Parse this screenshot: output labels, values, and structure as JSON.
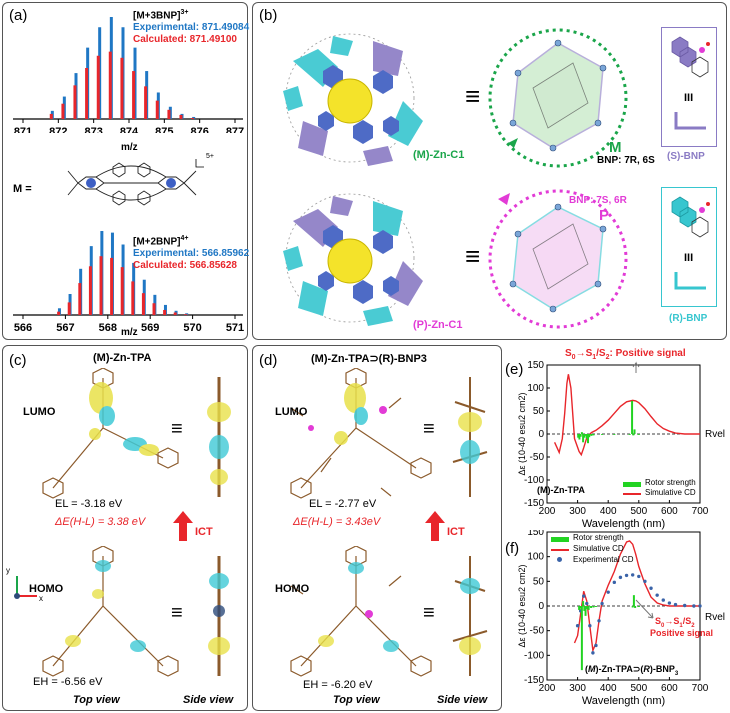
{
  "panels": {
    "a": "(a)",
    "b": "(b)",
    "c": "(c)",
    "d": "(d)",
    "e": "(e)",
    "f": "(f)"
  },
  "a_top": {
    "ion_label": "[M+3BNP]",
    "ion_charge": "3+",
    "experimental": "Experimental: 871.49084",
    "calculated": "Calculated: 871.49100",
    "xlabel": "m/z",
    "ticks": [
      "871",
      "872",
      "873",
      "874",
      "875",
      "876",
      "877"
    ]
  },
  "a_mid": {
    "m_label": "M =",
    "charge": "5+"
  },
  "a_bottom": {
    "ion_label": "[M+2BNP]",
    "ion_charge": "4+",
    "experimental": "Experimental: 566.85962",
    "calculated": "Calculated: 566.85628",
    "xlabel": "m/z",
    "ticks": [
      "566",
      "567",
      "568",
      "569",
      "570",
      "571"
    ]
  },
  "b": {
    "top_label": "(M)-Zn-C1",
    "bottom_label": "(P)-Zn-C1",
    "equiv": "≡",
    "helix_m": "M",
    "helix_p": "P",
    "bnp_m": "BNP: 7R, 6S",
    "bnp_p": "BNP: 7S, 6R",
    "s_bnp": "(S)-BNP",
    "r_bnp": "(R)-BNP",
    "iii": "III"
  },
  "c": {
    "title": "(M)-Zn-TPA",
    "lumo": "LUMO",
    "homo": "HOMO",
    "el": "EL = -3.18 eV",
    "de": "ΔE(H-L) = 3.38 eV",
    "eh": "EH = -6.56 eV",
    "ict": "ICT",
    "top_view": "Top view",
    "side_view": "Side view",
    "axis_y": "y",
    "axis_x": "x"
  },
  "d": {
    "title": "(M)-Zn-TPA⊃(R)-BNP3",
    "lumo": "LUMO",
    "homo": "HOMO",
    "el": "EL = -2.77 eV",
    "de": "ΔE(H-L) = 3.43eV",
    "eh": "EH = -6.20 eV",
    "ict": "ICT",
    "top_view": "Top view",
    "side_view": "Side view"
  },
  "e_annot": {
    "signal": "S0→S1/S2: Positive signal",
    "legend_title": "(M)-Zn-TPA",
    "legend_rotor": "Rotor strength",
    "legend_sim": "Simulative CD",
    "rvel": "Rvel"
  },
  "f_annot": {
    "signal_a": "S0→S1/S2",
    "signal_b": "Positive signal",
    "legend_title": "(M)-Zn-TPA⊃(R)-BNP3",
    "legend_rotor": "Rotor strength",
    "legend_sim": "Simulative CD",
    "legend_exp": "Experimental CD",
    "rvel": "Rvel"
  },
  "colors": {
    "blue": "#1f77c4",
    "red": "#e8262b",
    "green": "#22d322",
    "exp_dots": "#3a63a8",
    "cyan": "#37c6cf",
    "purple": "#8a7bc4",
    "magenta": "#e23bd6",
    "dark_green": "#1aa54a"
  },
  "chart_data": [
    {
      "type": "bar",
      "id": "ms-3plus",
      "title": "[M+3BNP]3+",
      "xlabel": "m/z",
      "xlim": [
        871,
        877
      ],
      "ylim": [
        0,
        100
      ],
      "series": [
        {
          "name": "Experimental: 871.49084",
          "x": [
            871.83,
            872.17,
            872.5,
            872.83,
            873.17,
            873.5,
            873.83,
            874.17,
            874.5,
            874.83,
            875.17,
            875.5,
            875.83
          ],
          "values": [
            8,
            22,
            45,
            70,
            90,
            100,
            90,
            70,
            47,
            26,
            12,
            5,
            2
          ]
        },
        {
          "name": "Calculated: 871.49100",
          "x": [
            871.8,
            872.13,
            872.47,
            872.8,
            873.13,
            873.47,
            873.8,
            874.13,
            874.47,
            874.8,
            875.13,
            875.47,
            875.8
          ],
          "values": [
            5,
            15,
            33,
            50,
            62,
            66,
            60,
            47,
            32,
            18,
            9,
            4,
            1
          ]
        }
      ]
    },
    {
      "type": "bar",
      "id": "ms-4plus",
      "title": "[M+2BNP]4+",
      "xlabel": "m/z",
      "xlim": [
        566,
        571
      ],
      "ylim": [
        0,
        100
      ],
      "series": [
        {
          "name": "Experimental: 566.85962",
          "x": [
            566.86,
            567.11,
            567.36,
            567.61,
            567.86,
            568.11,
            568.36,
            568.61,
            568.86,
            569.11,
            569.36,
            569.61,
            569.86
          ],
          "values": [
            8,
            25,
            55,
            82,
            100,
            98,
            84,
            62,
            42,
            24,
            12,
            5,
            2
          ]
        },
        {
          "name": "Calculated: 566.85628",
          "x": [
            566.84,
            567.09,
            567.34,
            567.59,
            567.84,
            568.09,
            568.34,
            568.59,
            568.84,
            569.09,
            569.34,
            569.59,
            569.84
          ],
          "values": [
            4,
            15,
            38,
            58,
            70,
            68,
            57,
            40,
            26,
            14,
            6,
            3,
            1
          ]
        }
      ]
    },
    {
      "type": "line",
      "id": "cd-e",
      "xlabel": "Wavelength (nm)",
      "ylabel": "Δε (10-40 esu2 cm2)",
      "xlim": [
        200,
        700
      ],
      "ylim": [
        -150,
        150
      ],
      "xticks": [
        200,
        300,
        400,
        500,
        600,
        700
      ],
      "yticks": [
        -150,
        -100,
        -50,
        0,
        50,
        100,
        150
      ],
      "series": [
        {
          "name": "Simulative CD",
          "x": [
            225,
            240,
            250,
            258,
            265,
            270,
            278,
            290,
            305,
            312,
            320,
            330,
            345,
            360,
            380,
            400,
            420,
            440,
            460,
            480,
            490,
            500,
            520,
            540,
            560,
            580,
            600,
            620,
            650,
            680,
            700
          ],
          "values": [
            -18,
            -40,
            -10,
            45,
            110,
            130,
            100,
            -10,
            -38,
            -45,
            -30,
            -8,
            3,
            8,
            18,
            30,
            45,
            60,
            70,
            73,
            72,
            68,
            55,
            38,
            22,
            12,
            6,
            2,
            0,
            0,
            0
          ]
        },
        {
          "name": "Rotor strength",
          "x": [
            302,
            306,
            310,
            314,
            318,
            322,
            326,
            330,
            334,
            338,
            345,
            352,
            380,
            420,
            470,
            478,
            482,
            486,
            500
          ],
          "values": [
            -8,
            -12,
            -6,
            4,
            -18,
            -8,
            -4,
            -10,
            -20,
            -7,
            -4,
            -3,
            -2,
            -2,
            -2,
            72,
            -3,
            10,
            -2
          ]
        }
      ]
    },
    {
      "type": "line",
      "id": "cd-f",
      "xlabel": "Wavelength (nm)",
      "ylabel": "Δε (10-40 esu2 cm2)",
      "xlim": [
        200,
        700
      ],
      "ylim": [
        -150,
        150
      ],
      "xticks": [
        200,
        300,
        400,
        500,
        600,
        700
      ],
      "yticks": [
        -150,
        -100,
        -50,
        0,
        50,
        100,
        150
      ],
      "series": [
        {
          "name": "Simulative CD",
          "x": [
            290,
            300,
            310,
            320,
            330,
            340,
            350,
            360,
            370,
            380,
            400,
            420,
            440,
            460,
            470,
            480,
            490,
            500,
            520,
            540,
            560,
            580,
            600,
            620,
            650,
            680,
            700
          ],
          "values": [
            -75,
            -60,
            -15,
            30,
            10,
            -40,
            -90,
            -75,
            -30,
            10,
            42,
            70,
            105,
            130,
            132,
            125,
            105,
            80,
            45,
            18,
            6,
            2,
            0,
            0,
            0,
            0,
            0
          ]
        },
        {
          "name": "Experimental CD",
          "x": [
            300,
            310,
            320,
            330,
            340,
            350,
            360,
            370,
            380,
            400,
            420,
            440,
            460,
            480,
            500,
            520,
            540,
            560,
            580,
            600,
            620,
            650,
            680,
            700
          ],
          "values": [
            -40,
            -10,
            20,
            5,
            -40,
            -95,
            -80,
            -30,
            5,
            28,
            48,
            58,
            62,
            63,
            60,
            50,
            36,
            22,
            12,
            6,
            3,
            1,
            0,
            0
          ]
        },
        {
          "name": "Rotor strength",
          "x": [
            305,
            310,
            314,
            318,
            322,
            326,
            330,
            336,
            344,
            352,
            360,
            480,
            484,
            488,
            500
          ],
          "values": [
            -8,
            -5,
            -130,
            10,
            -10,
            -20,
            -6,
            -8,
            -4,
            -3,
            -2,
            -3,
            22,
            -4,
            -2
          ]
        }
      ]
    }
  ]
}
